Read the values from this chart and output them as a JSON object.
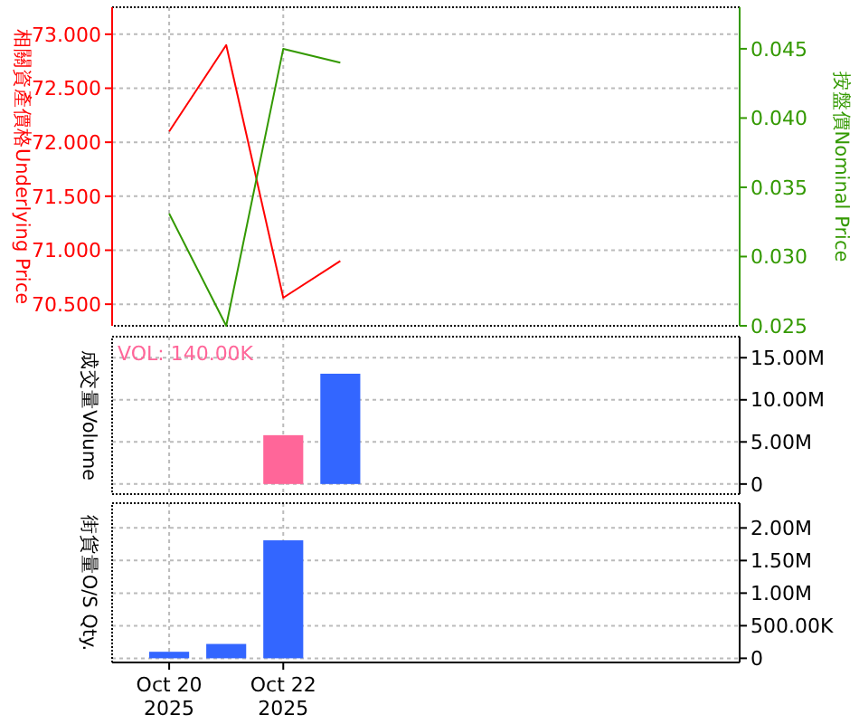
{
  "chart_data": [
    {
      "type": "line",
      "x": [
        "2025-10-20",
        "2025-10-21",
        "2025-10-22",
        "2025-10-23"
      ],
      "ylabel": "相關資產價格Underlying Price",
      "y2label": "按盤價Nominal Price",
      "series": [
        {
          "color": "#ff0000",
          "values": [
            72.1,
            72.9,
            70.56,
            70.9
          ]
        },
        {
          "color": "#339900",
          "values": [
            0.0331,
            0.025,
            0.045,
            0.044
          ],
          "axis": "y2"
        }
      ],
      "xlim": [
        "2025-10-19",
        "2025-10-30"
      ],
      "xticks": [
        {
          "value": "2025-10-20",
          "label": null
        },
        {
          "value": "2025-10-22",
          "label": null
        }
      ],
      "ylim": [
        70.3,
        73.25
      ],
      "yticks": [
        {
          "value": 70.5,
          "label": "70.500"
        },
        {
          "value": 71,
          "label": "71.000"
        },
        {
          "value": 71.5,
          "label": "71.500"
        },
        {
          "value": 72,
          "label": "72.000"
        },
        {
          "value": 72.5,
          "label": "72.500"
        },
        {
          "value": 73,
          "label": "73.000"
        }
      ],
      "y2lim": [
        0.025,
        0.048
      ],
      "y2ticks": [
        {
          "value": 0.025,
          "label": "0.025"
        },
        {
          "value": 0.03,
          "label": "0.030"
        },
        {
          "value": 0.035,
          "label": "0.035"
        },
        {
          "value": 0.04,
          "label": "0.040"
        },
        {
          "value": 0.045,
          "label": "0.045"
        }
      ],
      "grid": true,
      "tick_labels": "y",
      "marker": "none"
    },
    {
      "type": "bar",
      "x": [
        "2025-10-22",
        "2025-10-23"
      ],
      "ylabel": "成交量Volume",
      "annotations": [
        "VOL: 140.00K"
      ],
      "values": [
        5800000,
        13100000
      ],
      "colors": [
        "#ff6699",
        "#3366ff"
      ],
      "xlim": [
        "2025-10-19",
        "2025-10-30"
      ],
      "xticks": [
        {
          "value": "2025-10-20",
          "label": null
        },
        {
          "value": "2025-10-22",
          "label": null
        }
      ],
      "ylim": [
        -1200000,
        17500000
      ],
      "yticks": [
        {
          "value": 0,
          "label": "0"
        },
        {
          "value": 5000000,
          "label": "5.00M"
        },
        {
          "value": 10000000,
          "label": "10.00M"
        },
        {
          "value": 15000000,
          "label": "15.00M"
        }
      ],
      "grid": true,
      "tick_labels": "y"
    },
    {
      "type": "bar",
      "x": [
        "2025-10-20",
        "2025-10-21",
        "2025-10-22"
      ],
      "ylabel": "街貨量O/S Qty.",
      "values": [
        100000,
        220000,
        1810000
      ],
      "colors": [
        "#3366ff",
        "#3366ff",
        "#3366ff"
      ],
      "xlim": [
        "2025-10-19",
        "2025-10-30"
      ],
      "xticks": [
        {
          "value": "2025-10-20",
          "label": "Oct 20 2025"
        },
        {
          "value": "2025-10-22",
          "label": "Oct 22 2025"
        }
      ],
      "ylim": [
        -64000,
        2380000
      ],
      "yticks": [
        {
          "value": 0,
          "label": "0"
        },
        {
          "value": 500000,
          "label": "500.00K"
        },
        {
          "value": 1000000,
          "label": "1.00M"
        },
        {
          "value": 1500000,
          "label": "1.50M"
        },
        {
          "value": 2000000,
          "label": "2.00M"
        }
      ],
      "grid": true
    }
  ]
}
